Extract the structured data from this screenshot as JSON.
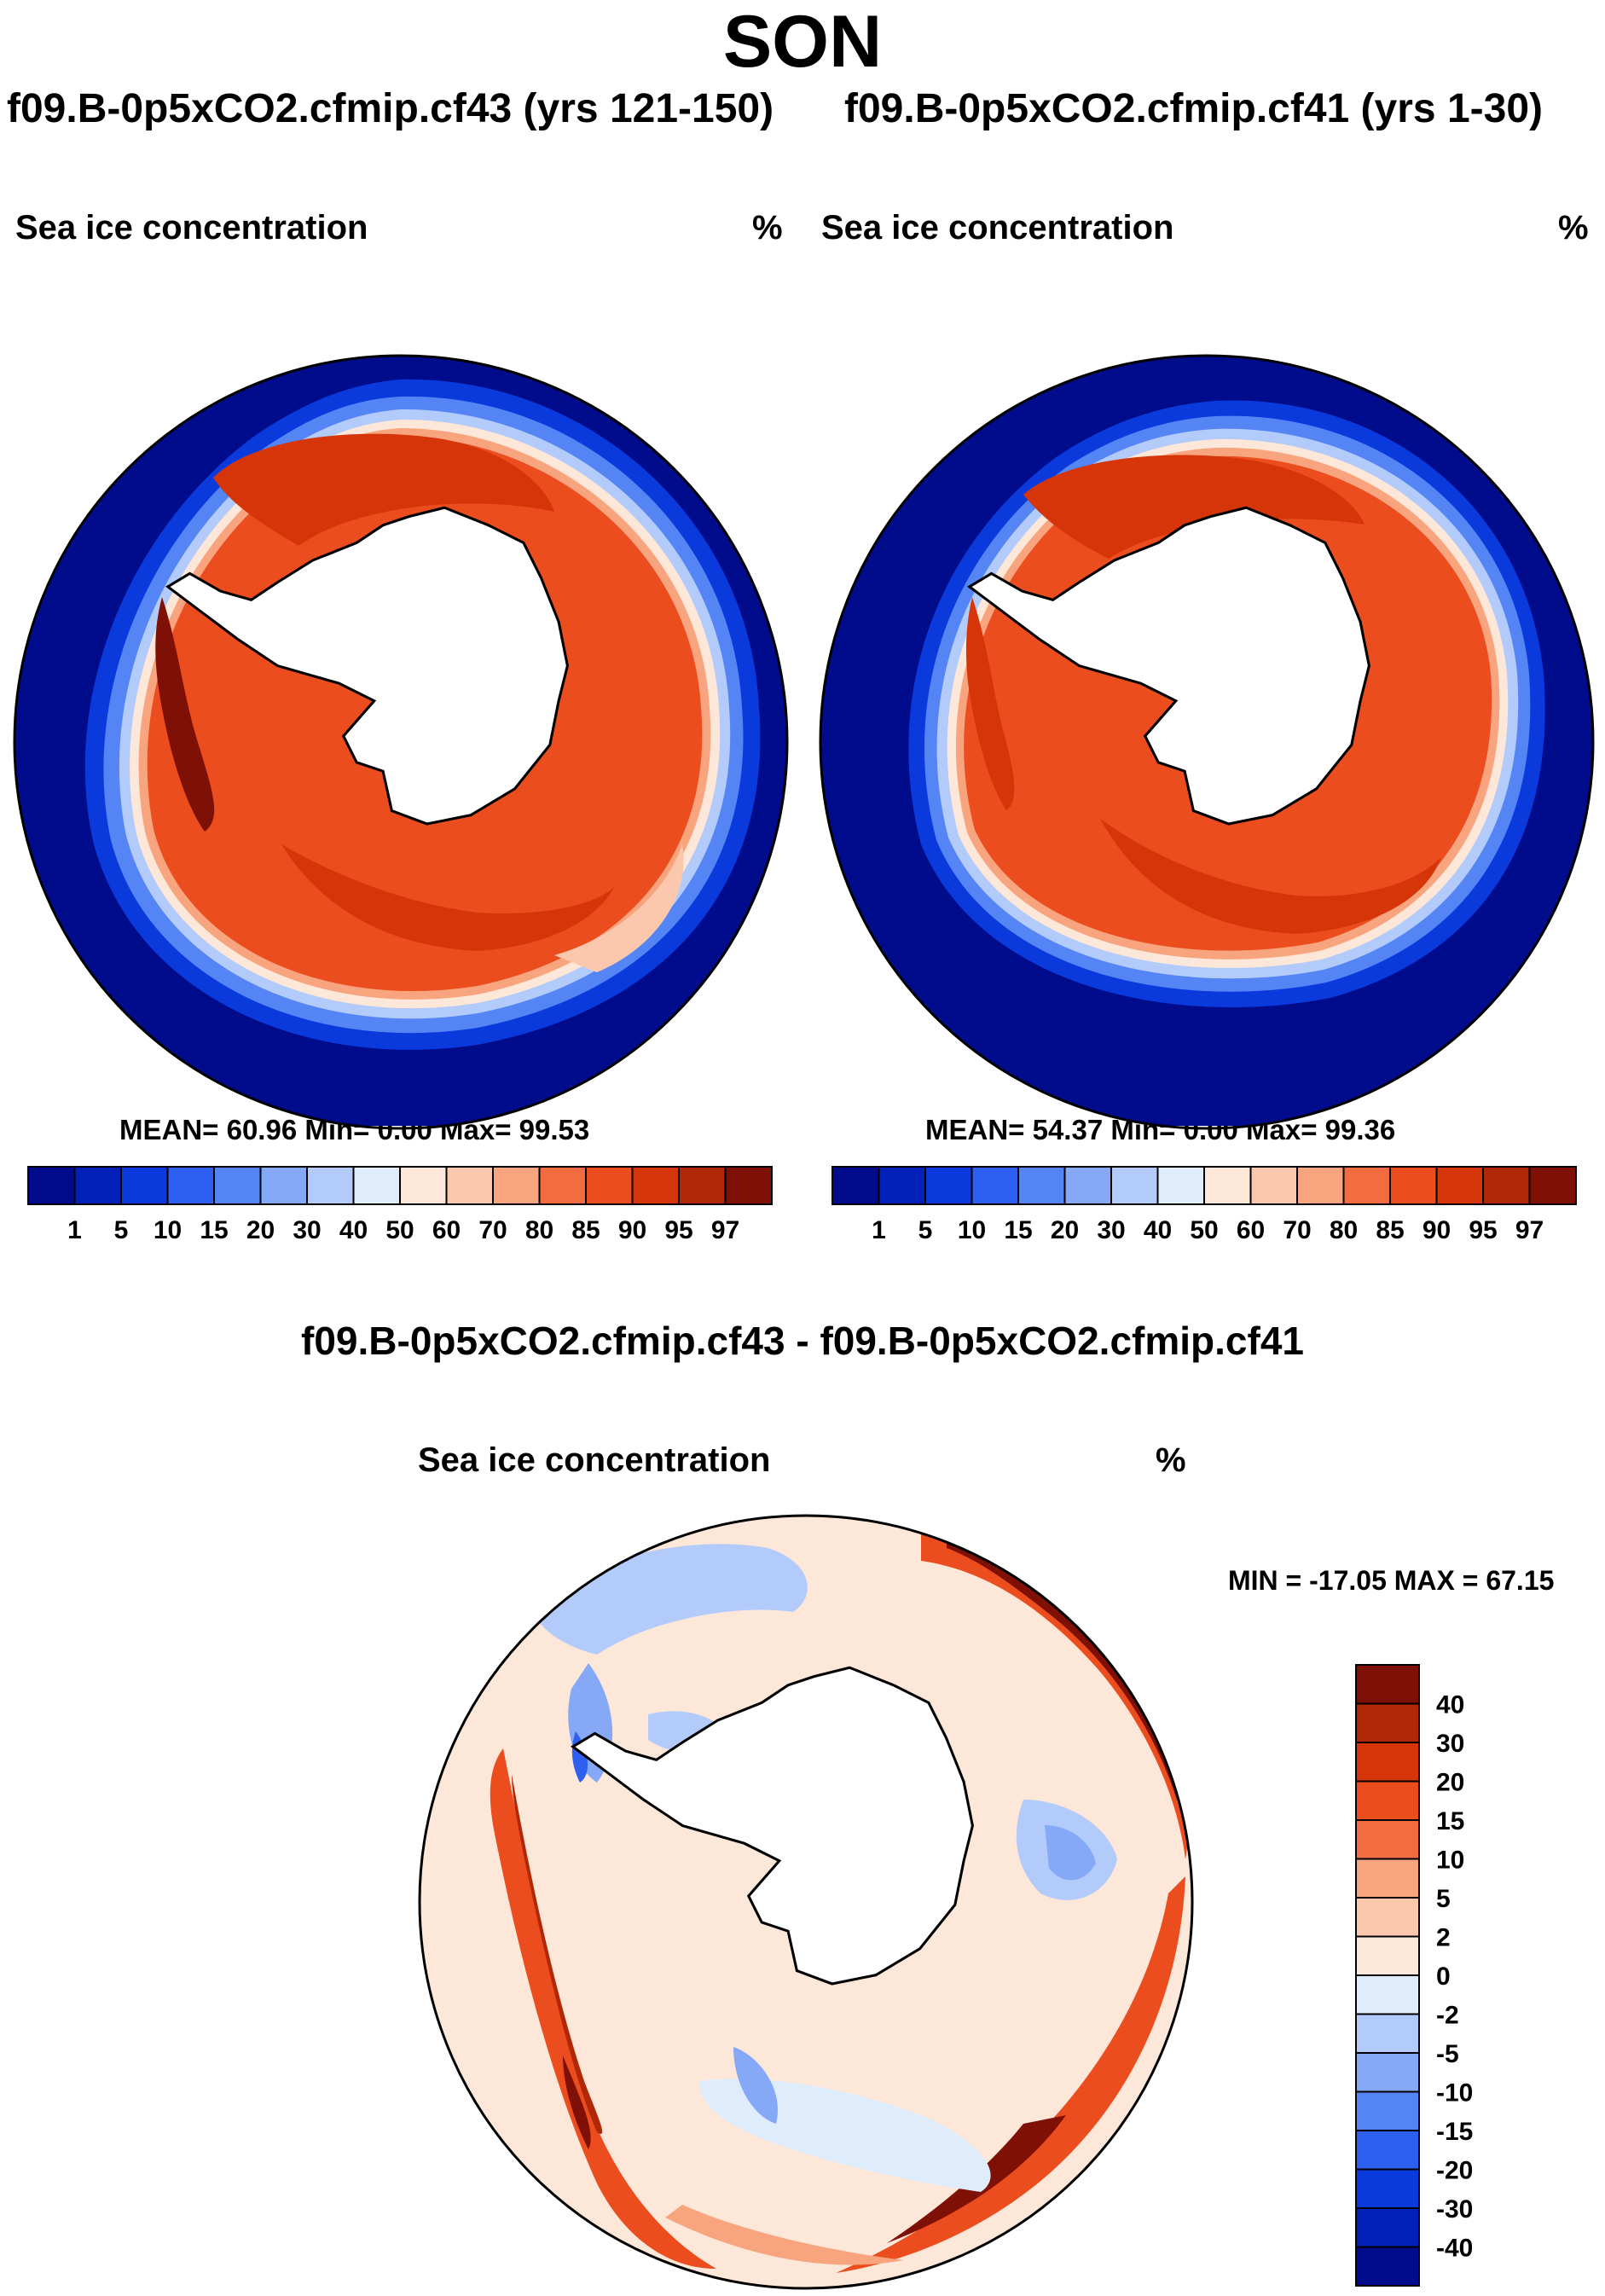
{
  "figure": {
    "season": "SON",
    "panels": [
      {
        "run_title": "f09.B-0p5xCO2.cfmip.cf43 (yrs 121-150)",
        "variable": "Sea ice concentration",
        "units": "%",
        "stats": "MEAN=  60.96  Min=    0.00  Max=  99.53"
      },
      {
        "run_title": "f09.B-0p5xCO2.cfmip.cf41 (yrs 1-30)",
        "variable": "Sea ice concentration",
        "units": "%",
        "stats": "MEAN=  54.37  Min=    0.00  Max=  99.36"
      }
    ],
    "difference": {
      "title": "f09.B-0p5xCO2.cfmip.cf43 - f09.B-0p5xCO2.cfmip.cf41",
      "variable": "Sea ice concentration",
      "units": "%",
      "minmax": "MIN = -17.05 MAX =  67.15"
    }
  },
  "concentration_colorbar": {
    "labels": [
      "1",
      "5",
      "10",
      "15",
      "20",
      "30",
      "40",
      "50",
      "60",
      "70",
      "80",
      "85",
      "90",
      "95",
      "97"
    ],
    "colors": [
      "#000c8b",
      "#0020b8",
      "#0a3adc",
      "#2d5ff0",
      "#5585f5",
      "#85a8f7",
      "#b3cbfa",
      "#deecfc",
      "#fde7d8",
      "#fcc8ad",
      "#f8a47f",
      "#f26c40",
      "#ec4d1e",
      "#d63509",
      "#b12806",
      "#7f1006"
    ]
  },
  "difference_colorbar": {
    "labels": [
      "40",
      "30",
      "20",
      "15",
      "10",
      "5",
      "2",
      "0",
      "-2",
      "-5",
      "-10",
      "-15",
      "-20",
      "-30",
      "-40"
    ],
    "colors": [
      "#7f1006",
      "#b12806",
      "#d63509",
      "#ec4d1e",
      "#f26c40",
      "#f8a47f",
      "#fcc8ad",
      "#fde7d8",
      "#deecfc",
      "#b3cbfa",
      "#85a8f7",
      "#5585f5",
      "#2d5ff0",
      "#0a3adc",
      "#0020b8",
      "#000c8b"
    ]
  }
}
